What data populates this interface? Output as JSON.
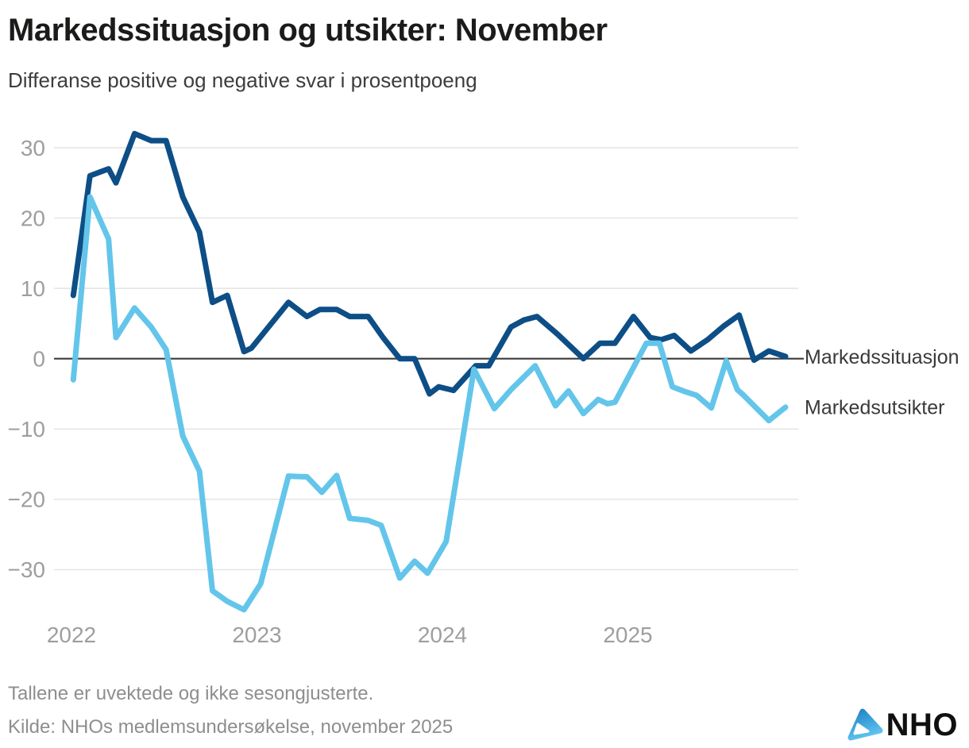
{
  "title": "Markedssituasjon og utsikter: November",
  "subtitle": "Differanse positive og negative svar i prosentpoeng",
  "footnote": "Tallene er uvektede og ikke sesongjusterte.",
  "source": "Kilde: NHOs medlemsundersøkelse, november 2025",
  "logo_text": "NHO",
  "colors": {
    "series_dark": "#0D4E86",
    "series_light": "#63C5EA",
    "grid": "#E3E3E3",
    "zero_line": "#3C3C3C",
    "tick_label": "#9E9E9E",
    "series_label": "#3A3A3A",
    "title": "#1B1B1A",
    "subtitle": "#3D3D3C",
    "muted": "#8E8E8E",
    "logo_gradient_start": "#1D82C4",
    "logo_gradient_end": "#5EC1EE"
  },
  "chart_data": {
    "type": "line",
    "x_axis": "time (year, fractional)",
    "xlim": [
      2021.97,
      2025.97
    ],
    "ylim": [
      -38,
      34
    ],
    "x_ticks": [
      2022,
      2023,
      2024,
      2025
    ],
    "x_tick_labels": [
      "2022",
      "2023",
      "2024",
      "2025"
    ],
    "y_ticks": [
      30,
      20,
      10,
      0,
      -10,
      -20,
      -30
    ],
    "y_tick_labels": [
      "30",
      "20",
      "10",
      "0",
      "−10",
      "−20",
      "−30"
    ],
    "grid": "horizontal",
    "zero_line": true,
    "legend_position": "end-of-line-labels",
    "series": [
      {
        "name": "Markedssituasjon",
        "color": "#0D4E86",
        "points": [
          [
            2022.01,
            9
          ],
          [
            2022.1,
            26
          ],
          [
            2022.2,
            27
          ],
          [
            2022.24,
            25
          ],
          [
            2022.34,
            32
          ],
          [
            2022.43,
            31
          ],
          [
            2022.51,
            31
          ],
          [
            2022.6,
            23
          ],
          [
            2022.69,
            18
          ],
          [
            2022.76,
            8
          ],
          [
            2022.84,
            9
          ],
          [
            2022.93,
            1
          ],
          [
            2022.97,
            1.5
          ],
          [
            2023.17,
            8
          ],
          [
            2023.27,
            6
          ],
          [
            2023.34,
            7
          ],
          [
            2023.43,
            7
          ],
          [
            2023.5,
            6
          ],
          [
            2023.6,
            6
          ],
          [
            2023.68,
            3
          ],
          [
            2023.77,
            0
          ],
          [
            2023.85,
            0
          ],
          [
            2023.93,
            -5
          ],
          [
            2023.98,
            -4
          ],
          [
            2024.06,
            -4.5
          ],
          [
            2024.18,
            -1
          ],
          [
            2024.25,
            -1
          ],
          [
            2024.37,
            4.5
          ],
          [
            2024.44,
            5.5
          ],
          [
            2024.51,
            6
          ],
          [
            2024.62,
            3.5
          ],
          [
            2024.76,
            0
          ],
          [
            2024.85,
            2.2
          ],
          [
            2024.93,
            2.2
          ],
          [
            2025.03,
            6
          ],
          [
            2025.12,
            3
          ],
          [
            2025.18,
            2.7
          ],
          [
            2025.25,
            3.3
          ],
          [
            2025.34,
            1.1
          ],
          [
            2025.43,
            2.7
          ],
          [
            2025.52,
            4.7
          ],
          [
            2025.6,
            6.2
          ],
          [
            2025.68,
            -0.2
          ],
          [
            2025.76,
            1.1
          ],
          [
            2025.85,
            0.3
          ]
        ]
      },
      {
        "name": "Markedsutsikter",
        "color": "#63C5EA",
        "points": [
          [
            2022.01,
            -3
          ],
          [
            2022.1,
            23
          ],
          [
            2022.15,
            20
          ],
          [
            2022.2,
            17
          ],
          [
            2022.24,
            3
          ],
          [
            2022.34,
            7.2
          ],
          [
            2022.43,
            4.5
          ],
          [
            2022.51,
            1.3
          ],
          [
            2022.6,
            -11
          ],
          [
            2022.69,
            -16
          ],
          [
            2022.76,
            -33
          ],
          [
            2022.84,
            -34.5
          ],
          [
            2022.93,
            -35.7
          ],
          [
            2023.02,
            -32
          ],
          [
            2023.17,
            -16.7
          ],
          [
            2023.27,
            -16.8
          ],
          [
            2023.35,
            -19
          ],
          [
            2023.43,
            -16.6
          ],
          [
            2023.5,
            -22.7
          ],
          [
            2023.6,
            -23
          ],
          [
            2023.67,
            -23.7
          ],
          [
            2023.77,
            -31.2
          ],
          [
            2023.85,
            -28.8
          ],
          [
            2023.92,
            -30.5
          ],
          [
            2024.02,
            -26
          ],
          [
            2024.17,
            -1.5
          ],
          [
            2024.28,
            -7.1
          ],
          [
            2024.37,
            -4.4
          ],
          [
            2024.5,
            -1
          ],
          [
            2024.61,
            -6.7
          ],
          [
            2024.68,
            -4.6
          ],
          [
            2024.76,
            -7.8
          ],
          [
            2024.84,
            -5.8
          ],
          [
            2024.89,
            -6.4
          ],
          [
            2024.93,
            -6.2
          ],
          [
            2025.1,
            2.2
          ],
          [
            2025.17,
            2.2
          ],
          [
            2025.24,
            -4
          ],
          [
            2025.31,
            -4.7
          ],
          [
            2025.37,
            -5.2
          ],
          [
            2025.45,
            -7
          ],
          [
            2025.53,
            -0.3
          ],
          [
            2025.59,
            -4.4
          ],
          [
            2025.62,
            -5.1
          ],
          [
            2025.76,
            -8.8
          ],
          [
            2025.85,
            -6.9
          ]
        ]
      }
    ]
  }
}
